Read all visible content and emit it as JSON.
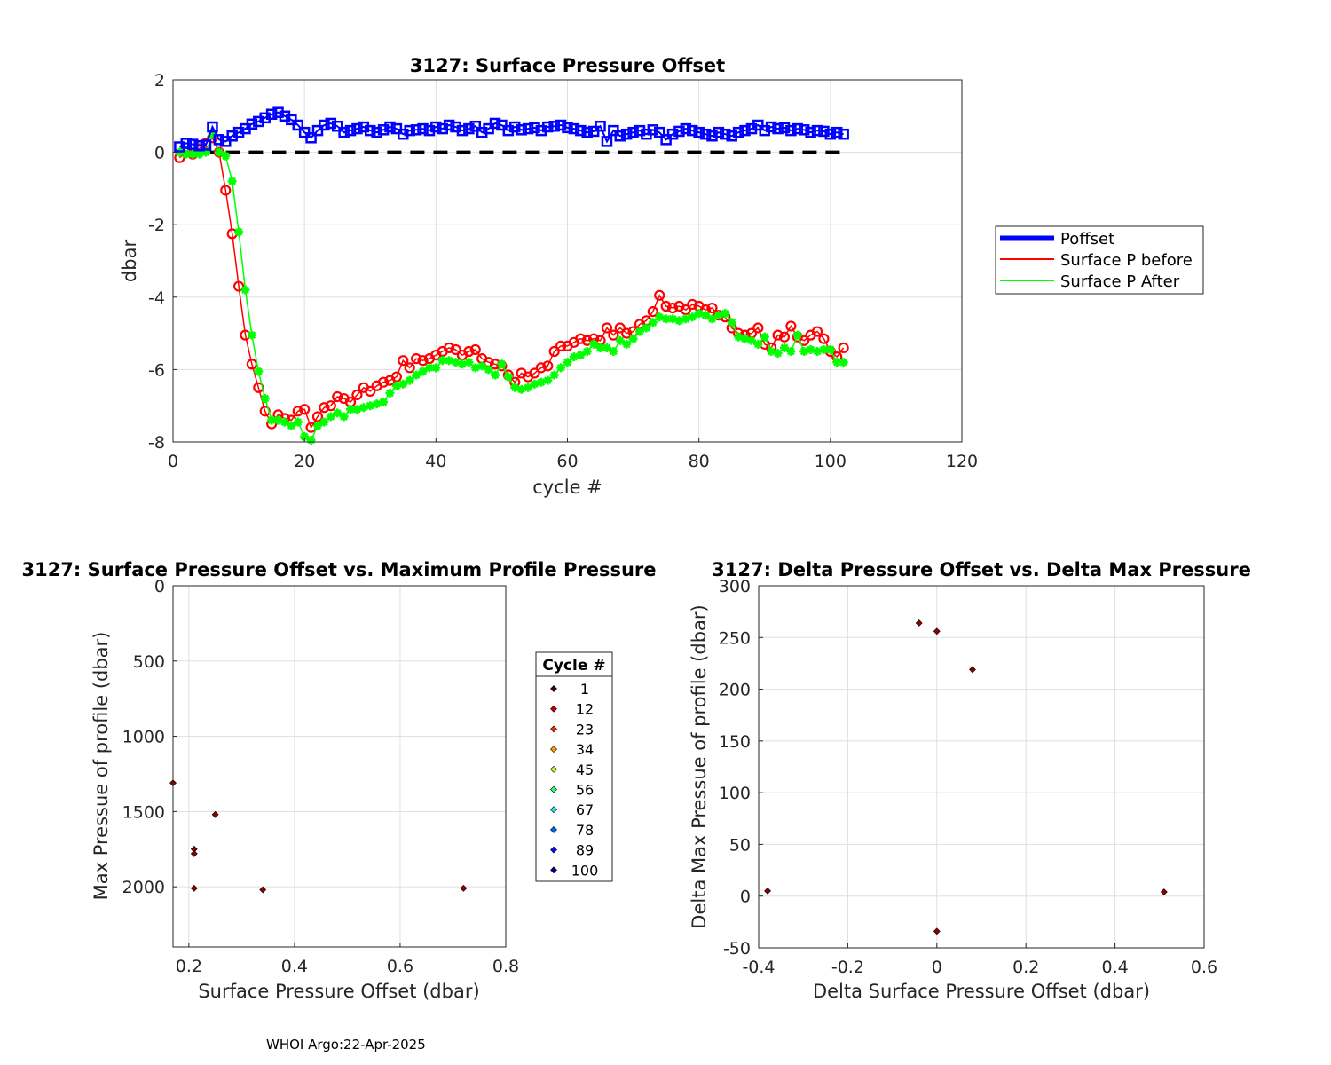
{
  "footer": "WHOI Argo:22-Apr-2025",
  "chart_data": [
    {
      "type": "line",
      "title": "3127: Surface Pressure Offset",
      "xlabel": "cycle #",
      "ylabel": "dbar",
      "xlim": [
        0,
        120
      ],
      "ylim": [
        -8,
        2
      ],
      "xticks": [
        "0",
        "20",
        "40",
        "60",
        "80",
        "100",
        "120"
      ],
      "yticks": [
        "-8",
        "-6",
        "-4",
        "-2",
        "0",
        "2"
      ],
      "grid": true,
      "legend_position": "outside-right",
      "zero_line": {
        "x": [
          0,
          102
        ],
        "y": 0,
        "style": "dashed",
        "color": "#000000"
      },
      "series": [
        {
          "name": "Poffset",
          "color": "#0000ff",
          "marker": "square",
          "x": [
            1,
            2,
            3,
            4,
            5,
            6,
            7,
            8,
            9,
            10,
            11,
            12,
            13,
            14,
            15,
            16,
            17,
            18,
            19,
            20,
            21,
            22,
            23,
            24,
            25,
            26,
            27,
            28,
            29,
            30,
            31,
            32,
            33,
            34,
            35,
            36,
            37,
            38,
            39,
            40,
            41,
            42,
            43,
            44,
            45,
            46,
            47,
            48,
            49,
            50,
            51,
            52,
            53,
            54,
            55,
            56,
            57,
            58,
            59,
            60,
            61,
            62,
            63,
            64,
            65,
            66,
            67,
            68,
            69,
            70,
            71,
            72,
            73,
            74,
            75,
            76,
            77,
            78,
            79,
            80,
            81,
            82,
            83,
            84,
            85,
            86,
            87,
            88,
            89,
            90,
            91,
            92,
            93,
            94,
            95,
            96,
            97,
            98,
            99,
            100,
            101,
            102
          ],
          "y": [
            0.15,
            0.25,
            0.22,
            0.18,
            0.2,
            0.7,
            0.35,
            0.3,
            0.45,
            0.55,
            0.65,
            0.78,
            0.85,
            0.95,
            1.05,
            1.1,
            1.0,
            0.9,
            0.75,
            0.55,
            0.4,
            0.6,
            0.75,
            0.8,
            0.72,
            0.55,
            0.6,
            0.65,
            0.7,
            0.6,
            0.55,
            0.62,
            0.7,
            0.65,
            0.5,
            0.6,
            0.62,
            0.65,
            0.6,
            0.7,
            0.65,
            0.75,
            0.7,
            0.6,
            0.65,
            0.72,
            0.55,
            0.65,
            0.8,
            0.75,
            0.6,
            0.7,
            0.62,
            0.65,
            0.68,
            0.6,
            0.7,
            0.72,
            0.75,
            0.68,
            0.65,
            0.6,
            0.55,
            0.58,
            0.72,
            0.3,
            0.6,
            0.45,
            0.5,
            0.55,
            0.6,
            0.5,
            0.62,
            0.55,
            0.35,
            0.5,
            0.58,
            0.65,
            0.6,
            0.55,
            0.5,
            0.45,
            0.55,
            0.5,
            0.45,
            0.55,
            0.6,
            0.65,
            0.75,
            0.6,
            0.7,
            0.65,
            0.68,
            0.6,
            0.65,
            0.62,
            0.55,
            0.6,
            0.58,
            0.5,
            0.55,
            0.5
          ]
        },
        {
          "name": "Surface P before",
          "color": "#ff0000",
          "marker": "circle",
          "x": [
            1,
            2,
            3,
            4,
            5,
            6,
            7,
            8,
            9,
            10,
            11,
            12,
            13,
            14,
            15,
            16,
            17,
            18,
            19,
            20,
            21,
            22,
            23,
            24,
            25,
            26,
            27,
            28,
            29,
            30,
            31,
            32,
            33,
            34,
            35,
            36,
            37,
            38,
            39,
            40,
            41,
            42,
            43,
            44,
            45,
            46,
            47,
            48,
            49,
            50,
            51,
            52,
            53,
            54,
            55,
            56,
            57,
            58,
            59,
            60,
            61,
            62,
            63,
            64,
            65,
            66,
            67,
            68,
            69,
            70,
            71,
            72,
            73,
            74,
            75,
            76,
            77,
            78,
            79,
            80,
            81,
            82,
            83,
            84,
            85,
            86,
            87,
            88,
            89,
            90,
            91,
            92,
            93,
            94,
            95,
            96,
            97,
            98,
            99,
            100,
            101,
            102
          ],
          "y": [
            -0.15,
            0.0,
            -0.05,
            0.1,
            0.25,
            0.4,
            0.0,
            -1.05,
            -2.25,
            -3.7,
            -5.05,
            -5.85,
            -6.5,
            -7.15,
            -7.5,
            -7.25,
            -7.35,
            -7.4,
            -7.15,
            -7.1,
            -7.6,
            -7.3,
            -7.05,
            -7.0,
            -6.75,
            -6.8,
            -6.9,
            -6.7,
            -6.5,
            -6.6,
            -6.45,
            -6.35,
            -6.3,
            -6.2,
            -5.75,
            -5.95,
            -5.7,
            -5.75,
            -5.7,
            -5.6,
            -5.5,
            -5.4,
            -5.45,
            -5.6,
            -5.5,
            -5.45,
            -5.7,
            -5.8,
            -5.85,
            -5.9,
            -6.15,
            -6.35,
            -6.1,
            -6.2,
            -6.1,
            -5.95,
            -5.9,
            -5.5,
            -5.35,
            -5.35,
            -5.25,
            -5.15,
            -5.2,
            -5.15,
            -5.2,
            -4.85,
            -5.05,
            -4.85,
            -5.0,
            -4.95,
            -4.75,
            -4.65,
            -4.4,
            -3.95,
            -4.25,
            -4.3,
            -4.25,
            -4.35,
            -4.2,
            -4.25,
            -4.35,
            -4.3,
            -4.5,
            -4.55,
            -4.85,
            -5.0,
            -5.05,
            -5.0,
            -4.85,
            -5.3,
            -5.4,
            -5.05,
            -5.1,
            -4.8,
            -5.1,
            -5.2,
            -5.05,
            -4.95,
            -5.15,
            -5.5,
            -5.65,
            -5.4
          ]
        },
        {
          "name": "Surface P After",
          "color": "#00ff00",
          "marker": "asterisk",
          "x": [
            1,
            2,
            3,
            4,
            5,
            6,
            7,
            8,
            9,
            10,
            11,
            12,
            13,
            14,
            15,
            16,
            17,
            18,
            19,
            20,
            21,
            22,
            23,
            24,
            25,
            26,
            27,
            28,
            29,
            30,
            31,
            32,
            33,
            34,
            35,
            36,
            37,
            38,
            39,
            40,
            41,
            42,
            43,
            44,
            45,
            46,
            47,
            48,
            49,
            50,
            51,
            52,
            53,
            54,
            55,
            56,
            57,
            58,
            59,
            60,
            61,
            62,
            63,
            64,
            65,
            66,
            67,
            68,
            69,
            70,
            71,
            72,
            73,
            74,
            75,
            76,
            77,
            78,
            79,
            80,
            81,
            82,
            83,
            84,
            85,
            86,
            87,
            88,
            89,
            90,
            91,
            92,
            93,
            94,
            95,
            96,
            97,
            98,
            99,
            100,
            101,
            102
          ],
          "y": [
            0.0,
            -0.05,
            -0.05,
            -0.05,
            0.0,
            0.5,
            0.0,
            -0.1,
            -0.8,
            -2.2,
            -3.8,
            -5.05,
            -6.05,
            -6.8,
            -7.4,
            -7.4,
            -7.45,
            -7.55,
            -7.45,
            -7.85,
            -7.95,
            -7.55,
            -7.45,
            -7.3,
            -7.2,
            -7.3,
            -7.1,
            -7.1,
            -7.05,
            -7.0,
            -6.95,
            -6.9,
            -6.65,
            -6.45,
            -6.4,
            -6.3,
            -6.15,
            -6.05,
            -5.95,
            -5.95,
            -5.75,
            -5.75,
            -5.8,
            -5.85,
            -5.8,
            -5.95,
            -5.9,
            -6.0,
            -6.15,
            -5.85,
            -6.2,
            -6.5,
            -6.55,
            -6.5,
            -6.4,
            -6.35,
            -6.3,
            -6.15,
            -5.95,
            -5.8,
            -5.65,
            -5.6,
            -5.5,
            -5.3,
            -5.4,
            -5.4,
            -5.5,
            -5.2,
            -5.3,
            -5.15,
            -4.95,
            -4.85,
            -4.7,
            -4.55,
            -4.6,
            -4.6,
            -4.65,
            -4.6,
            -4.55,
            -4.45,
            -4.5,
            -4.6,
            -4.5,
            -4.45,
            -4.7,
            -5.1,
            -5.15,
            -5.2,
            -5.3,
            -5.1,
            -5.5,
            -5.55,
            -5.4,
            -5.5,
            -5.05,
            -5.5,
            -5.45,
            -5.5,
            -5.45,
            -5.45,
            -5.8,
            -5.8
          ]
        }
      ]
    },
    {
      "type": "scatter",
      "title": "3127: Surface Pressure Offset vs. Maximum Profile Pressure",
      "xlabel": "Surface Pressure Offset (dbar)",
      "ylabel": "Max Pressue of profile (dbar)",
      "xlim": [
        0.17,
        0.8
      ],
      "ylim": [
        2400,
        0
      ],
      "y_reversed": true,
      "xticks": [
        "0.2",
        "0.4",
        "0.6",
        "0.8"
      ],
      "yticks": [
        "0",
        "500",
        "1000",
        "1500",
        "2000"
      ],
      "grid": true,
      "marker_color": "#8b0000",
      "points": [
        {
          "x": 0.17,
          "y": 1310
        },
        {
          "x": 0.25,
          "y": 1520
        },
        {
          "x": 0.21,
          "y": 1750
        },
        {
          "x": 0.21,
          "y": 1780
        },
        {
          "x": 0.21,
          "y": 2010
        },
        {
          "x": 0.34,
          "y": 2020
        },
        {
          "x": 0.72,
          "y": 2010
        }
      ],
      "colorbar_legend": {
        "title": "Cycle #",
        "entries": [
          {
            "label": "1",
            "color": "#4a0000"
          },
          {
            "label": "12",
            "color": "#c40000"
          },
          {
            "label": "23",
            "color": "#ff2a00"
          },
          {
            "label": "34",
            "color": "#ff9900"
          },
          {
            "label": "45",
            "color": "#b8ff2a"
          },
          {
            "label": "56",
            "color": "#2aff6a"
          },
          {
            "label": "67",
            "color": "#12e6ff"
          },
          {
            "label": "78",
            "color": "#0066ff"
          },
          {
            "label": "89",
            "color": "#0a0aff"
          },
          {
            "label": "100",
            "color": "#00008b"
          }
        ]
      }
    },
    {
      "type": "scatter",
      "title": "3127: Delta Pressure Offset vs. Delta Max Pressure",
      "xlabel": "Delta Surface Pressure Offset (dbar)",
      "ylabel": "Delta Max Pressue of profile (dbar)",
      "xlim": [
        -0.4,
        0.6
      ],
      "ylim": [
        -50,
        300
      ],
      "xticks": [
        "-0.4",
        "-0.2",
        "0",
        "0.2",
        "0.4",
        "0.6"
      ],
      "yticks": [
        "-50",
        "0",
        "50",
        "100",
        "150",
        "200",
        "250",
        "300"
      ],
      "grid": true,
      "marker_color": "#8b0000",
      "points": [
        {
          "x": -0.38,
          "y": 5
        },
        {
          "x": -0.04,
          "y": 264
        },
        {
          "x": 0.0,
          "y": 256
        },
        {
          "x": 0.08,
          "y": 219
        },
        {
          "x": 0.0,
          "y": -34
        },
        {
          "x": 0.51,
          "y": 4
        }
      ]
    }
  ]
}
